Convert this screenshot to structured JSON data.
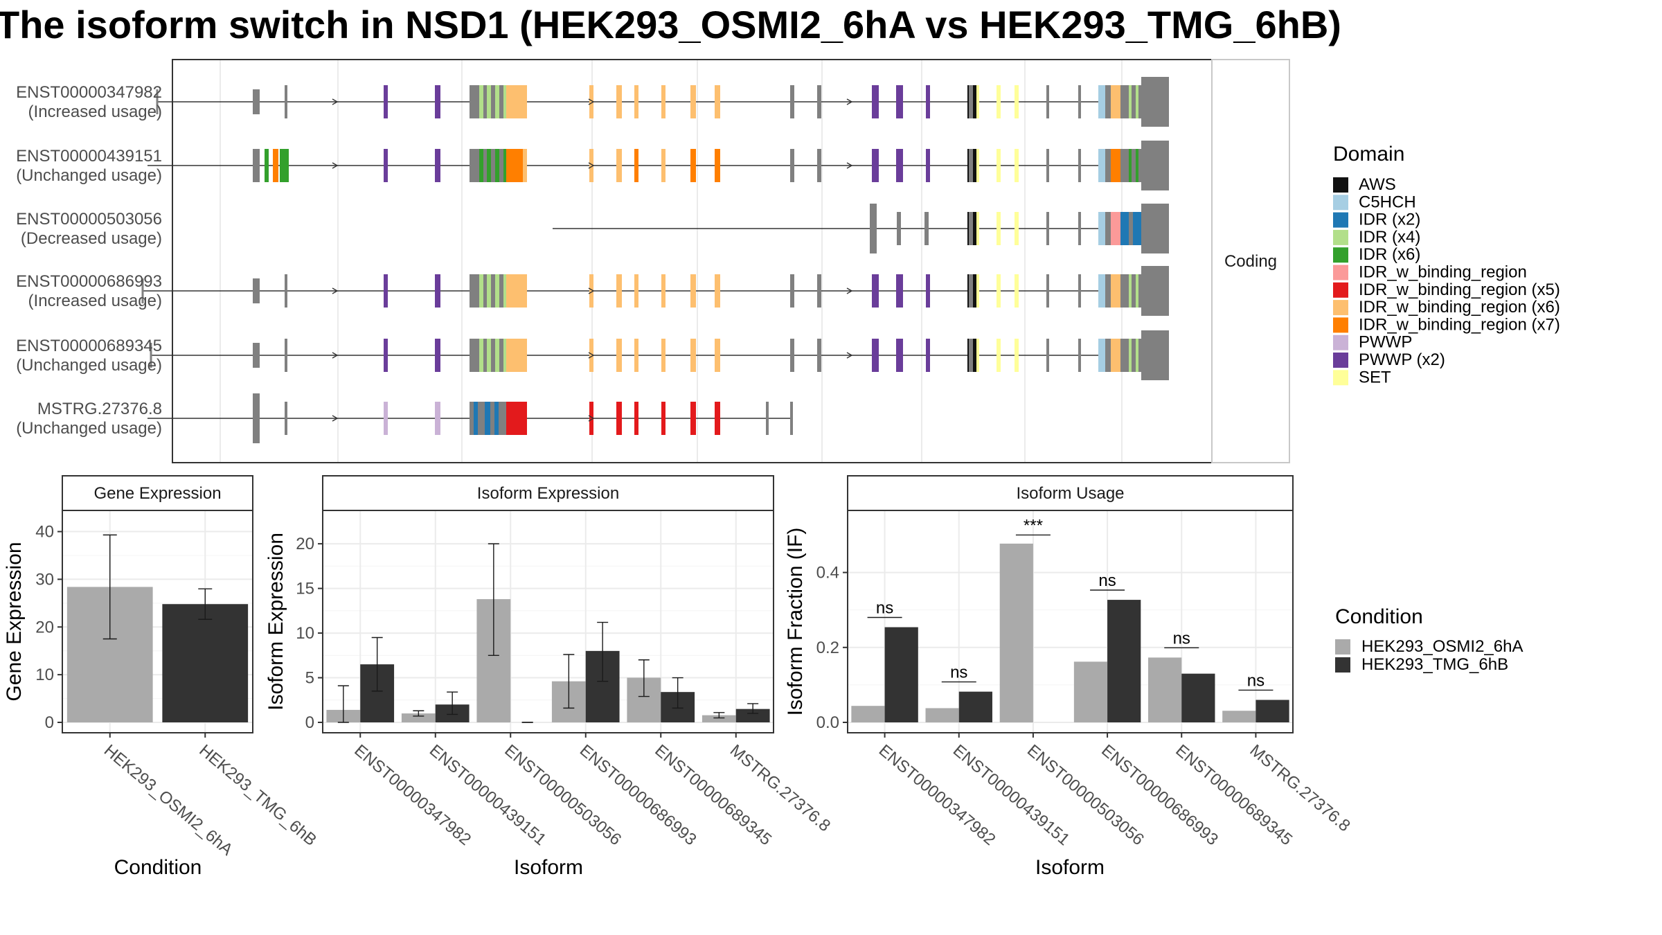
{
  "title": "The isoform switch in NSD1 (HEK293_OSMI2_6hA vs HEK293_TMG_6hB)",
  "colors": {
    "intron": "#333333",
    "exon": "#808080",
    "panel_border": "#333333",
    "grid": "#ebebeb",
    "strip_bg": "#ffffff",
    "condition_a": "#aaaaaa",
    "condition_b": "#333333"
  },
  "structure": {
    "facet_label": "Coding",
    "isoforms": [
      {
        "id": "ENST00000347982",
        "usage": "(Increased usage)",
        "layout": "full",
        "start": 227,
        "tss": [
          227,
          240
        ]
      },
      {
        "id": "ENST00000439151",
        "usage": "(Unchanged usage)",
        "layout": "alt",
        "start": 213
      },
      {
        "id": "ENST00000503056",
        "usage": "(Decreased usage)",
        "layout": "short",
        "start": 798
      },
      {
        "id": "ENST00000686993",
        "usage": "(Increased usage)",
        "layout": "full",
        "start": 206,
        "tss": [
          206,
          240
        ]
      },
      {
        "id": "ENST00000689345",
        "usage": "(Unchanged usage)",
        "layout": "full",
        "start": 218,
        "tss": [
          218,
          240
        ]
      },
      {
        "id": "MSTRG.27376.8",
        "usage": "(Unchanged usage)",
        "layout": "mstrg",
        "start": 213
      }
    ]
  },
  "legend_domain": {
    "title": "Domain",
    "items": [
      {
        "label": "AWS",
        "color": "#111111"
      },
      {
        "label": "C5HCH",
        "color": "#a6cee3"
      },
      {
        "label": "IDR (x2)",
        "color": "#1f78b4"
      },
      {
        "label": "IDR (x4)",
        "color": "#b2df8a"
      },
      {
        "label": "IDR (x6)",
        "color": "#33a02c"
      },
      {
        "label": "IDR_w_binding_region",
        "color": "#fb9a99"
      },
      {
        "label": "IDR_w_binding_region (x5)",
        "color": "#e31a1c"
      },
      {
        "label": "IDR_w_binding_region (x6)",
        "color": "#fdbf6f"
      },
      {
        "label": "IDR_w_binding_region (x7)",
        "color": "#ff7f00"
      },
      {
        "label": "PWWP",
        "color": "#cab2d6"
      },
      {
        "label": "PWWP (x2)",
        "color": "#6a3d9a"
      },
      {
        "label": "SET",
        "color": "#ffff99"
      }
    ]
  },
  "legend_condition": {
    "title": "Condition",
    "items": [
      {
        "label": "HEK293_OSMI2_6hA",
        "color": "#aaaaaa"
      },
      {
        "label": "HEK293_TMG_6hB",
        "color": "#333333"
      }
    ]
  },
  "chart_data": [
    {
      "type": "bar",
      "strip": "Gene Expression",
      "xlabel": "Condition",
      "ylabel": "Gene Expression",
      "ylim": [
        0,
        44
      ],
      "yticks": [
        "0",
        "10",
        "20",
        "30",
        "40"
      ],
      "categories": [
        "HEK293_OSMI2_6hA",
        "HEK293_TMG_6hB"
      ],
      "values": [
        28.4,
        24.8
      ],
      "error": [
        [
          17.5,
          39.3
        ],
        [
          21.6,
          28.0
        ]
      ]
    },
    {
      "type": "bar",
      "strip": "Isoform Expression",
      "xlabel": "Isoform",
      "ylabel": "Isoform Expression",
      "ylim": [
        0,
        23.5
      ],
      "yticks": [
        "0",
        "5",
        "10",
        "15",
        "20"
      ],
      "categories": [
        "ENST00000347982",
        "ENST00000439151",
        "ENST00000503056",
        "ENST00000686993",
        "ENST00000689345",
        "MSTRG.27376.8"
      ],
      "series": [
        {
          "name": "HEK293_OSMI2_6hA",
          "values": [
            1.4,
            1.0,
            13.8,
            4.6,
            5.0,
            0.8
          ],
          "error": [
            [
              0.0,
              4.1
            ],
            [
              0.7,
              1.3
            ],
            [
              7.5,
              20.0
            ],
            [
              1.6,
              7.6
            ],
            [
              2.9,
              7.0
            ],
            [
              0.5,
              1.1
            ]
          ]
        },
        {
          "name": "HEK293_TMG_6hB",
          "values": [
            6.5,
            2.0,
            0.0,
            8.0,
            3.4,
            1.5
          ],
          "error": [
            [
              3.5,
              9.5
            ],
            [
              0.9,
              3.4
            ],
            [
              0.0,
              0.0
            ],
            [
              4.6,
              11.2
            ],
            [
              1.6,
              5.0
            ],
            [
              1.0,
              2.1
            ]
          ]
        }
      ]
    },
    {
      "type": "bar",
      "strip": "Isoform Usage",
      "xlabel": "Isoform",
      "ylabel": "Isoform Fraction (IF)",
      "ylim": [
        0,
        0.56
      ],
      "yticks": [
        "0.0",
        "0.2",
        "0.4"
      ],
      "categories": [
        "ENST00000347982",
        "ENST00000439151",
        "ENST00000503056",
        "ENST00000686993",
        "ENST00000689345",
        "MSTRG.27376.8"
      ],
      "series": [
        {
          "name": "HEK293_OSMI2_6hA",
          "values": [
            0.044,
            0.038,
            0.477,
            0.162,
            0.173,
            0.031
          ]
        },
        {
          "name": "HEK293_TMG_6hB",
          "values": [
            0.254,
            0.082,
            0.0,
            0.327,
            0.13,
            0.06
          ]
        }
      ],
      "annotations": [
        {
          "category": 0,
          "text": "ns",
          "y": 0.28
        },
        {
          "category": 1,
          "text": "ns",
          "y": 0.108
        },
        {
          "category": 2,
          "text": "***",
          "y": 0.5
        },
        {
          "category": 3,
          "text": "ns",
          "y": 0.353
        },
        {
          "category": 4,
          "text": "ns",
          "y": 0.199
        },
        {
          "category": 5,
          "text": "ns",
          "y": 0.086
        }
      ]
    }
  ]
}
